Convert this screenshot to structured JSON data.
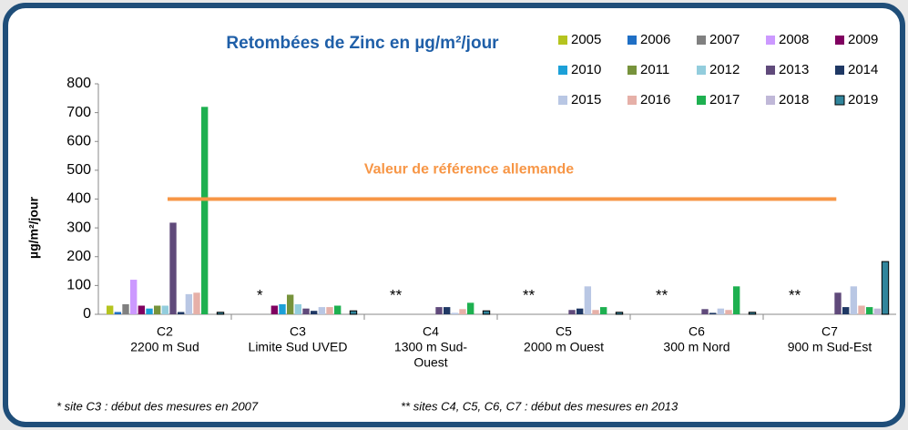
{
  "chart_data": {
    "type": "bar",
    "title": "Retombées de Zinc en µg/m²/jour",
    "y_label": "µg/m²/jour",
    "categories": [
      [
        "C2",
        "2200 m Sud"
      ],
      [
        "C3",
        "Limite Sud UVED"
      ],
      [
        "C4",
        "1300 m Sud-",
        "Ouest"
      ],
      [
        "C5",
        "2000 m Ouest"
      ],
      [
        "C6",
        "300 m Nord"
      ],
      [
        "C7",
        "900 m Sud-Est"
      ]
    ],
    "series": [
      {
        "name": "2005",
        "color": "#b5c41f",
        "values": [
          30,
          null,
          null,
          null,
          null,
          null
        ]
      },
      {
        "name": "2006",
        "color": "#1f6fc5",
        "values": [
          8,
          null,
          null,
          null,
          null,
          null
        ]
      },
      {
        "name": "2007",
        "color": "#808080",
        "values": [
          35,
          null,
          null,
          null,
          null,
          null
        ]
      },
      {
        "name": "2008",
        "color": "#cc99ff",
        "values": [
          120,
          null,
          null,
          null,
          null,
          null
        ]
      },
      {
        "name": "2009",
        "color": "#800060",
        "values": [
          30,
          30,
          null,
          null,
          null,
          null
        ]
      },
      {
        "name": "2010",
        "color": "#1ca0d8",
        "values": [
          20,
          35,
          null,
          null,
          null,
          null
        ]
      },
      {
        "name": "2011",
        "color": "#77933c",
        "values": [
          30,
          68,
          null,
          null,
          null,
          null
        ]
      },
      {
        "name": "2012",
        "color": "#93cddd",
        "values": [
          30,
          35,
          null,
          null,
          null,
          null
        ]
      },
      {
        "name": "2013",
        "color": "#604a7b",
        "values": [
          318,
          20,
          25,
          15,
          18,
          75
        ]
      },
      {
        "name": "2014",
        "color": "#1f3864",
        "values": [
          8,
          12,
          25,
          20,
          5,
          25
        ]
      },
      {
        "name": "2015",
        "color": "#b9c7e4",
        "values": [
          70,
          25,
          5,
          97,
          20,
          97
        ]
      },
      {
        "name": "2016",
        "color": "#e6b0a8",
        "values": [
          75,
          25,
          18,
          15,
          15,
          30
        ]
      },
      {
        "name": "2017",
        "color": "#1eb050",
        "values": [
          720,
          30,
          40,
          25,
          97,
          25
        ]
      },
      {
        "name": "2018",
        "color": "#c0b8d8",
        "values": [
          null,
          null,
          null,
          null,
          null,
          20
        ]
      },
      {
        "name": "2019",
        "color": "#31859c",
        "values": [
          7,
          12,
          12,
          7,
          7,
          183
        ]
      }
    ],
    "ylim": [
      0,
      800
    ],
    "yticks": [
      0,
      100,
      200,
      300,
      400,
      500,
      600,
      700,
      800
    ],
    "reference_line": {
      "value": 400,
      "label": "Valeur de référence allemande",
      "color": "#f79646"
    },
    "annotations": [
      null,
      "*",
      "**",
      "**",
      "**",
      "**"
    ],
    "footnotes": [
      "* site C3 : début des mesures en 2007",
      "** sites C4, C5, C6, C7 : début des mesures en 2013"
    ]
  }
}
